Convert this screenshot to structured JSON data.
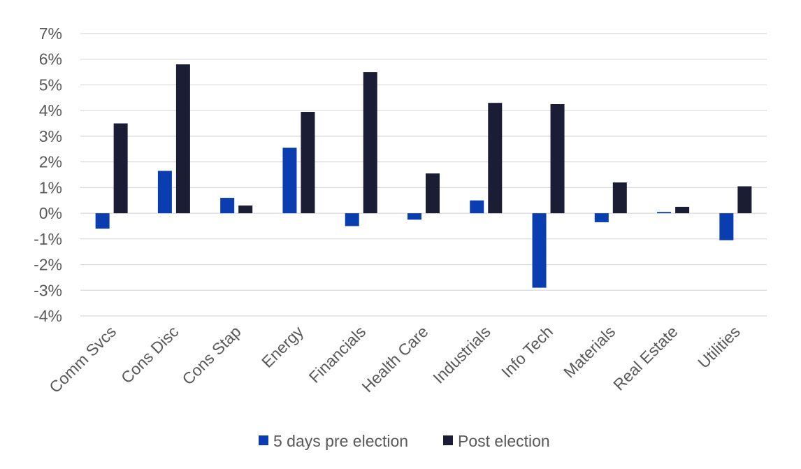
{
  "chart_data": {
    "type": "bar",
    "categories": [
      "Comm Svcs",
      "Cons Disc",
      "Cons Stap",
      "Energy",
      "Financials",
      "Health Care",
      "Industrials",
      "Info Tech",
      "Materials",
      "Real Estate",
      "Utilities"
    ],
    "series": [
      {
        "name": "5 days pre election",
        "color": "#0a3eb0",
        "values": [
          -0.6,
          1.65,
          0.6,
          2.55,
          -0.5,
          -0.25,
          0.5,
          -2.9,
          -0.35,
          0.05,
          -1.05
        ]
      },
      {
        "name": "Post election",
        "color": "#1b1d35",
        "values": [
          3.5,
          5.8,
          0.3,
          3.95,
          5.5,
          1.55,
          4.3,
          4.25,
          1.2,
          0.25,
          1.05
        ]
      }
    ],
    "ylim": [
      -4,
      7
    ],
    "yticks": [
      7,
      6,
      5,
      4,
      3,
      2,
      1,
      0,
      -1,
      -2,
      -3,
      -4
    ],
    "ytick_labels": [
      "7%",
      "6%",
      "5%",
      "4%",
      "3%",
      "2%",
      "1%",
      "0%",
      "-1%",
      "-2%",
      "-3%",
      "-4%"
    ],
    "title": "",
    "xlabel": "",
    "ylabel": "",
    "grid": true,
    "legend_position": "bottom"
  }
}
